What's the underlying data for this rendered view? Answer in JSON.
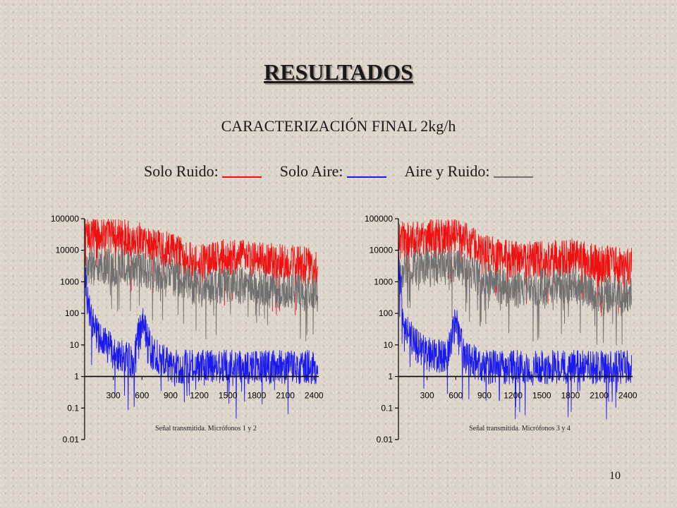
{
  "slide": {
    "title": "RESULTADOS",
    "subtitle": "CARACTERIZACIÓN FINAL 2kg/h",
    "page_number": "10",
    "legend": [
      {
        "label": "Solo Ruido:",
        "color": "#ee1111"
      },
      {
        "label": "Solo Aire:",
        "color": "#1a1aee"
      },
      {
        "label": "Aire y Ruido:",
        "color": "#707070"
      }
    ]
  },
  "chart_data": [
    {
      "type": "line",
      "title": "Señal transmitida. Micrófonos 1 y 2",
      "y_scale": "log",
      "y_ticks": [
        "100000",
        "10000",
        "1000",
        "100",
        "10",
        "1",
        "0.1",
        "0.01"
      ],
      "x_ticks": [
        "300",
        "600",
        "900",
        "1200",
        "1500",
        "1800",
        "2100",
        "2400"
      ],
      "xlim": [
        0,
        2450
      ],
      "ylim": [
        0.01,
        100000
      ],
      "series": [
        {
          "color": "#ee1111",
          "x": [
            0,
            300,
            600,
            900,
            1200,
            1500,
            1800,
            2100,
            2400
          ],
          "values": [
            40000,
            30000,
            20000,
            10000,
            4000,
            6000,
            5000,
            4000,
            3000
          ]
        },
        {
          "color": "#707070",
          "x": [
            0,
            300,
            600,
            900,
            1200,
            1500,
            1800,
            2100,
            2400
          ],
          "values": [
            3000,
            3000,
            2500,
            1500,
            600,
            800,
            700,
            500,
            400
          ]
        },
        {
          "color": "#1a1aee",
          "x": [
            0,
            60,
            150,
            300,
            500,
            600,
            700,
            900,
            1200,
            1500,
            1800,
            2100,
            2400
          ],
          "values": [
            2000,
            80,
            15,
            6,
            3,
            60,
            6,
            2,
            2,
            2,
            2,
            2,
            2
          ]
        }
      ]
    },
    {
      "type": "line",
      "title": "Señal transmitida. Micrófonos 3 y 4",
      "y_scale": "log",
      "y_ticks": [
        "100000",
        "10000",
        "1000",
        "100",
        "10",
        "1",
        "0.1",
        "0.01"
      ],
      "x_ticks": [
        "300",
        "600",
        "900",
        "1200",
        "1500",
        "1800",
        "2100",
        "2400"
      ],
      "xlim": [
        0,
        2450
      ],
      "ylim": [
        0.01,
        100000
      ],
      "series": [
        {
          "color": "#ee1111",
          "x": [
            0,
            300,
            600,
            900,
            1200,
            1500,
            1800,
            2100,
            2400
          ],
          "values": [
            20000,
            25000,
            30000,
            8000,
            5000,
            5000,
            6000,
            4000,
            3000
          ]
        },
        {
          "color": "#707070",
          "x": [
            0,
            300,
            600,
            900,
            1200,
            1500,
            1800,
            2100,
            2400
          ],
          "values": [
            2500,
            3000,
            3000,
            1200,
            500,
            700,
            800,
            400,
            400
          ]
        },
        {
          "color": "#1a1aee",
          "x": [
            0,
            60,
            150,
            300,
            500,
            600,
            700,
            900,
            1200,
            1500,
            1800,
            2100,
            2400
          ],
          "values": [
            3000,
            60,
            12,
            5,
            4,
            50,
            4,
            2,
            2,
            2,
            2,
            2,
            2
          ]
        }
      ]
    }
  ]
}
